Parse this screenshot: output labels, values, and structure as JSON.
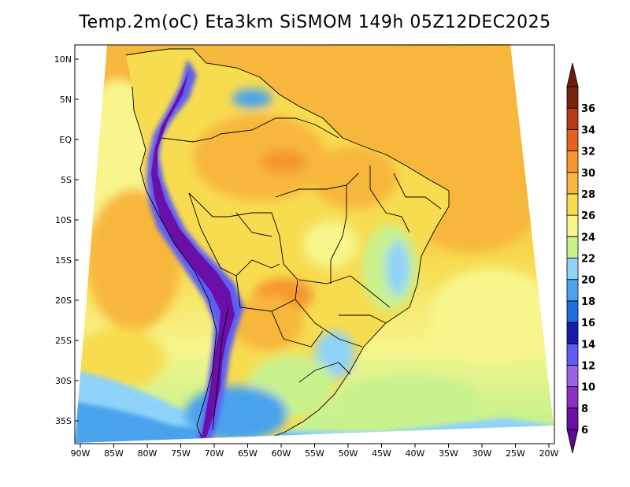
{
  "title": "Temp.2m(oC) Eta3km SiSMOM 149h 05Z12DEC2025",
  "axes": {
    "lat_labels": [
      "10N",
      "5N",
      "EQ",
      "5S",
      "10S",
      "15S",
      "20S",
      "25S",
      "30S",
      "35S"
    ],
    "lon_labels": [
      "90W",
      "85W",
      "80W",
      "75W",
      "70W",
      "65W",
      "60W",
      "55W",
      "50W",
      "45W",
      "40W",
      "35W",
      "30W",
      "25W",
      "20W"
    ]
  },
  "colorbar": {
    "labels": [
      "6",
      "8",
      "10",
      "12",
      "14",
      "16",
      "18",
      "20",
      "22",
      "24",
      "26",
      "28",
      "30",
      "32",
      "34",
      "36"
    ],
    "colors": [
      "#6a0fa8",
      "#8e2fc4",
      "#9a63e6",
      "#5d5df4",
      "#1a1aae",
      "#1e6ee0",
      "#4aa3ec",
      "#8fd3f8",
      "#c9f28e",
      "#f7f58c",
      "#f7dc50",
      "#f7b73c",
      "#f5972e",
      "#e2621e",
      "#b83a14",
      "#7a2410"
    ],
    "tip_low_color": "#5b0a8f",
    "tip_high_color": "#6b1d0c"
  },
  "colors": {
    "ocean_warm": "#f7b73c",
    "ocean_mid": "#f7dc50",
    "ocean_cool": "#f7f58c",
    "ocean_south": "#c9f28e",
    "ocean_cold": "#8fd3f8",
    "land_base": "#f7dc50",
    "land_hot": "#f5972e",
    "andes_cold": "#6a0fa8",
    "border": "#000000"
  }
}
